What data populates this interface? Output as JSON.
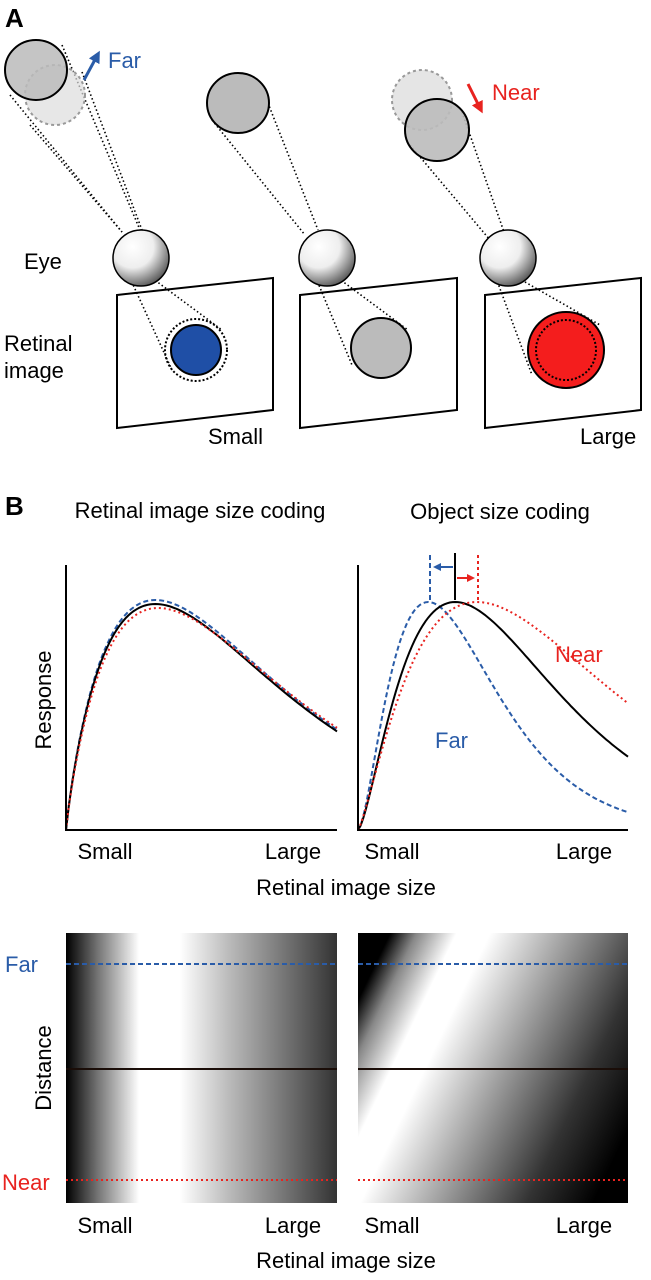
{
  "panel_a": {
    "label": "A",
    "far": "Far",
    "near": "Near",
    "eye": "Eye",
    "retinal_image": "Retinal image",
    "small": "Small",
    "large": "Large"
  },
  "panel_b": {
    "label": "B",
    "curves": {
      "titles": [
        "Retinal image size coding",
        "Object size coding"
      ],
      "y_label": "Response",
      "x_tick_labels": [
        [
          "Small",
          "Large"
        ],
        [
          "Small",
          "Large"
        ]
      ],
      "x_label": "Retinal image size",
      "near": "Near",
      "far": "Far"
    },
    "heatmaps": {
      "y_label": "Distance",
      "far": "Far",
      "near": "Near",
      "x_tick_labels": [
        [
          "Small",
          "Large"
        ],
        [
          "Small",
          "Large"
        ]
      ],
      "x_label": "Retinal image size"
    }
  }
}
